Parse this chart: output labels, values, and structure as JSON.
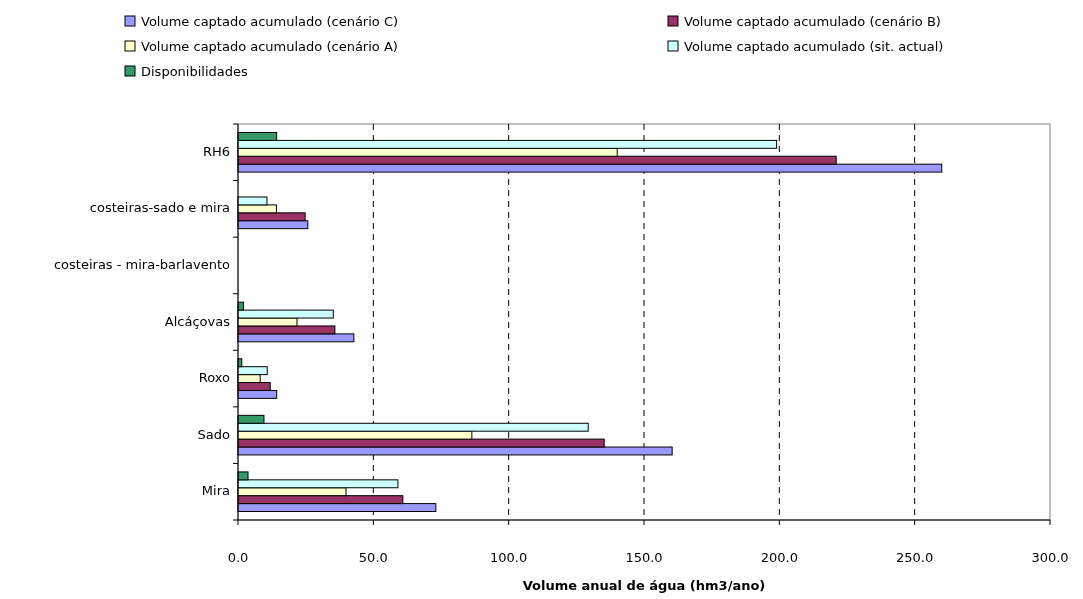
{
  "chart_data": {
    "type": "bar",
    "orientation": "horizontal",
    "xlabel": "Volume anual de água (hm3/ano)",
    "categories": [
      "RH6",
      "costeiras-sado e mira",
      "costeiras - mira-barlavento",
      "Alcáçovas",
      "Roxo",
      "Sado",
      "Mira"
    ],
    "series": [
      {
        "name": "Volume captado acumulado  (cenário C)",
        "color": "#9999ff",
        "values": [
          260,
          25.8,
          null,
          42.8,
          14.3,
          160.4,
          73.1
        ]
      },
      {
        "name": "Volume captado acumulado  (cenário B)",
        "color": "#993366",
        "values": [
          221,
          24.8,
          null,
          35.8,
          11.9,
          135.3,
          60.9
        ]
      },
      {
        "name": "Volume captado acumulado  (cenário A)",
        "color": "#ffffcc",
        "values": [
          140.1,
          14.2,
          null,
          21.8,
          8.2,
          86.4,
          39.9
        ]
      },
      {
        "name": "Volume captado acumulado (sit. actual)",
        "color": "#ccffff",
        "values": [
          199,
          10.7,
          null,
          35.2,
          10.8,
          129.4,
          59.1
        ]
      },
      {
        "name": "Disponibilidades",
        "color": "#339966",
        "values": [
          14.3,
          null,
          null,
          2.0,
          1.4,
          9.6,
          3.7
        ]
      }
    ],
    "xlim": [
      0,
      300
    ],
    "xticks": [
      {
        "value": 0,
        "label": "0.0"
      },
      {
        "value": 50,
        "label": "50.0"
      },
      {
        "value": 100,
        "label": "100.0"
      },
      {
        "value": 150,
        "label": "150.0"
      },
      {
        "value": 200,
        "label": "200.0"
      },
      {
        "value": 250,
        "label": "250.0"
      },
      {
        "value": 300,
        "label": "300.0"
      }
    ],
    "grid": "x",
    "legend": "top"
  }
}
